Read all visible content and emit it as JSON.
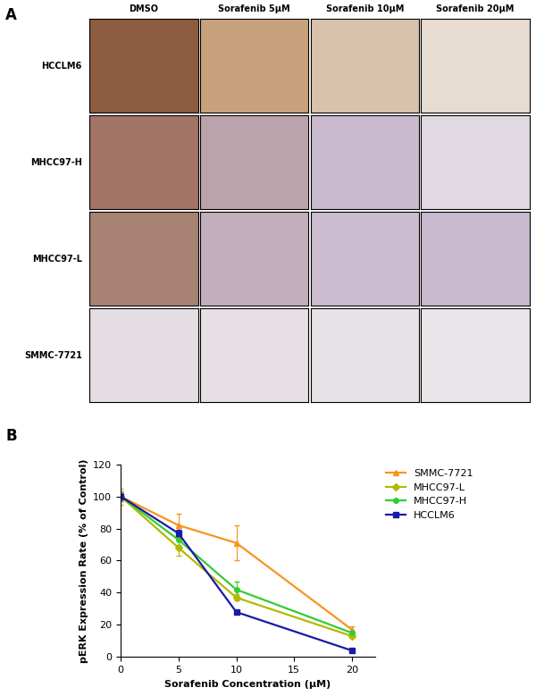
{
  "panel_a": {
    "panel_label": "A",
    "columns": [
      "DMSO",
      "Sorafenib 5μM",
      "Sorafenib 10μM",
      "Sorafenib 20μM"
    ],
    "rows": [
      "HCCLM6",
      "MHCC97-H",
      "MHCC97-L",
      "SMMC-7721"
    ]
  },
  "chart_data": {
    "type": "line",
    "panel_label": "B",
    "x_label": "Sorafenib Concentration (μM)",
    "y_label": "pERK Expression Rate (% of Control)",
    "x": [
      0,
      5,
      10,
      20
    ],
    "xlim": [
      0,
      22
    ],
    "xticks": [
      0,
      5,
      10,
      15,
      20
    ],
    "ylim": [
      0,
      120
    ],
    "yticks": [
      0,
      20,
      40,
      60,
      80,
      100,
      120
    ],
    "grid": false,
    "legend": "upper right",
    "series": [
      {
        "name": "SMMC-7721",
        "color": "#f7941d",
        "marker": "triangle",
        "values": [
          100,
          82,
          71,
          17
        ],
        "errors": [
          5,
          7,
          11,
          2
        ]
      },
      {
        "name": "MHCC97-L",
        "color": "#b5b800",
        "marker": "diamond",
        "values": [
          100,
          68,
          37,
          13
        ],
        "errors": [
          3,
          5,
          2,
          1
        ]
      },
      {
        "name": "MHCC97-H",
        "color": "#33cc33",
        "marker": "circle",
        "values": [
          100,
          73,
          42,
          15
        ],
        "errors": [
          3,
          3,
          5,
          1
        ]
      },
      {
        "name": "HCCLM6",
        "color": "#1a1aa8",
        "marker": "square",
        "values": [
          100,
          77,
          28,
          4
        ],
        "errors": [
          2,
          2,
          1,
          1
        ]
      }
    ]
  }
}
